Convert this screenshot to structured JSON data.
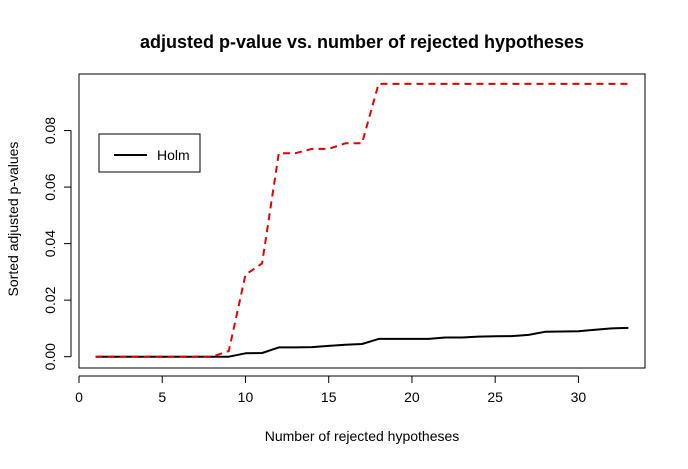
{
  "chart_data": {
    "type": "line",
    "title": "adjusted p-value vs. number of rejected hypotheses",
    "xlabel": "Number of rejected hypotheses",
    "ylabel": "Sorted adjusted p-values",
    "xlim": [
      0,
      34
    ],
    "ylim": [
      -0.004,
      0.1
    ],
    "x_ticks": [
      0,
      5,
      10,
      15,
      20,
      25,
      30
    ],
    "y_ticks": [
      0.0,
      0.02,
      0.04,
      0.06,
      0.08
    ],
    "y_tick_labels": [
      "0.00",
      "0.02",
      "0.04",
      "0.06",
      "0.08"
    ],
    "legend": {
      "position": "top-left",
      "entries": [
        {
          "label": "Holm",
          "color": "#000000",
          "style": "solid"
        }
      ]
    },
    "series": [
      {
        "name": "Holm",
        "color": "#000000",
        "style": "solid",
        "x": [
          1,
          2,
          3,
          4,
          5,
          6,
          7,
          8,
          9,
          10,
          11,
          12,
          13,
          14,
          15,
          16,
          17,
          18,
          19,
          20,
          21,
          22,
          23,
          24,
          25,
          26,
          27,
          28,
          29,
          30,
          31,
          32,
          33
        ],
        "y": [
          0.0,
          0.0,
          0.0,
          0.0,
          0.0,
          0.0,
          0.0,
          0.0,
          0.0,
          0.0012,
          0.0013,
          0.0033,
          0.0033,
          0.0034,
          0.0038,
          0.0042,
          0.0045,
          0.0063,
          0.0063,
          0.0063,
          0.0063,
          0.0068,
          0.0068,
          0.0071,
          0.0072,
          0.0073,
          0.0077,
          0.0088,
          0.0089,
          0.009,
          0.0095,
          0.01,
          0.0102
        ]
      },
      {
        "color": "#e00000",
        "style": "dashed",
        "x": [
          1,
          2,
          3,
          4,
          5,
          6,
          7,
          8,
          9,
          10,
          11,
          12,
          13,
          14,
          15,
          16,
          17,
          18,
          19,
          20,
          21,
          22,
          23,
          24,
          25,
          26,
          27,
          28,
          29,
          30,
          31,
          32,
          33
        ],
        "y": [
          0.0,
          0.0,
          0.0,
          0.0,
          0.0,
          0.0,
          0.0,
          0.0,
          0.002,
          0.029,
          0.033,
          0.072,
          0.072,
          0.0735,
          0.0735,
          0.0755,
          0.0755,
          0.0965,
          0.0965,
          0.0965,
          0.0965,
          0.0965,
          0.0965,
          0.0965,
          0.0965,
          0.0965,
          0.0965,
          0.0965,
          0.0965,
          0.0965,
          0.0965,
          0.0965,
          0.0965
        ]
      }
    ]
  }
}
